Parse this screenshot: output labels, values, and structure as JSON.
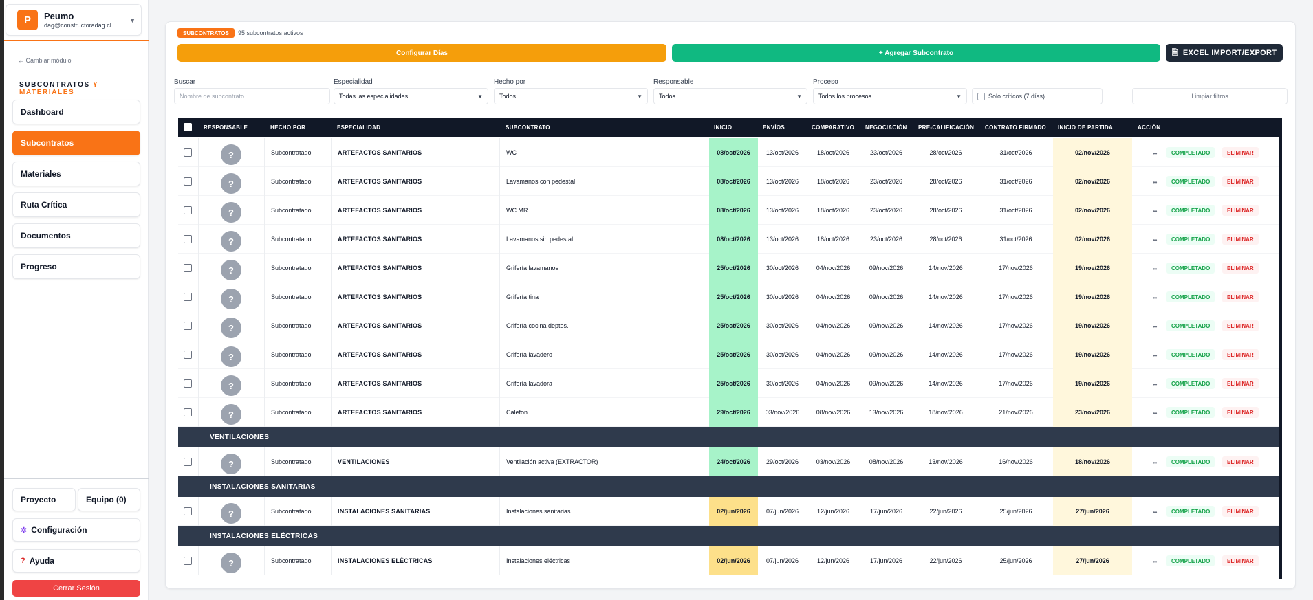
{
  "project": {
    "logo_letter": "P",
    "name": "Peumo",
    "email": "dag@constructoradag.cl"
  },
  "sidebar": {
    "change_module": "← Cambiar módulo",
    "module_title_a": "SUBCONTRATOS",
    "module_title_b": "Y MATERIALES",
    "nav": [
      "Dashboard",
      "Subcontratos",
      "Materiales",
      "Ruta Crítica",
      "Documentos",
      "Progreso"
    ],
    "active_nav": "Subcontratos",
    "project_btn": "Proyecto",
    "team_btn": "Equipo (0)",
    "config_btn": "Configuración",
    "help_btn": "Ayuda",
    "logout_btn": "Cerrar Sesión"
  },
  "header": {
    "badge": "SUBCONTRATOS",
    "active_count": "95 subcontratos activos",
    "configure_days": "Configurar Días",
    "add_subcontract": "+ Agregar Subcontrato",
    "excel": "EXCEL IMPORT/EXPORT"
  },
  "filters": {
    "search_label": "Buscar",
    "search_placeholder": "Nombre de subcontrato...",
    "specialty_label": "Especialidad",
    "specialty_value": "Todas las especialidades",
    "doneby_label": "Hecho por",
    "doneby_value": "Todos",
    "responsible_label": "Responsable",
    "responsible_value": "Todos",
    "process_label": "Proceso",
    "process_value": "Todos los procesos",
    "critical_only": "Solo críticos (7 días)",
    "clear": "Limpiar filtros"
  },
  "table": {
    "headers": [
      "RESPONSABLE",
      "HECHO POR",
      "ESPECIALIDAD",
      "SUBCONTRATO",
      "INICIO",
      "ENVÍOS",
      "COMPARATIVO",
      "NEGOCIACIÓN",
      "PRE-CALIFICACIÓN",
      "CONTRATO FIRMADO",
      "INICIO DE PARTIDA",
      "ACCIÓN"
    ],
    "avatar_glyph": "?",
    "status_label": "COMPLETADO",
    "delete_label": "ELIMINAR",
    "rows": [
      {
        "type": "row",
        "hecho": "Subcontratado",
        "esp": "ARTEFACTOS SANITARIOS",
        "sub": "WC",
        "inicio": "08/oct/2026",
        "inicio_color": "green",
        "envios": "13/oct/2026",
        "comp": "18/oct/2026",
        "neg": "23/oct/2026",
        "pre": "28/oct/2026",
        "firm": "31/oct/2026",
        "part": "02/nov/2026"
      },
      {
        "type": "row",
        "hecho": "Subcontratado",
        "esp": "ARTEFACTOS SANITARIOS",
        "sub": "Lavamanos con pedestal",
        "inicio": "08/oct/2026",
        "inicio_color": "green",
        "envios": "13/oct/2026",
        "comp": "18/oct/2026",
        "neg": "23/oct/2026",
        "pre": "28/oct/2026",
        "firm": "31/oct/2026",
        "part": "02/nov/2026"
      },
      {
        "type": "row",
        "hecho": "Subcontratado",
        "esp": "ARTEFACTOS SANITARIOS",
        "sub": "WC MR",
        "inicio": "08/oct/2026",
        "inicio_color": "green",
        "envios": "13/oct/2026",
        "comp": "18/oct/2026",
        "neg": "23/oct/2026",
        "pre": "28/oct/2026",
        "firm": "31/oct/2026",
        "part": "02/nov/2026"
      },
      {
        "type": "row",
        "hecho": "Subcontratado",
        "esp": "ARTEFACTOS SANITARIOS",
        "sub": "Lavamanos sin pedestal",
        "inicio": "08/oct/2026",
        "inicio_color": "green",
        "envios": "13/oct/2026",
        "comp": "18/oct/2026",
        "neg": "23/oct/2026",
        "pre": "28/oct/2026",
        "firm": "31/oct/2026",
        "part": "02/nov/2026"
      },
      {
        "type": "row",
        "hecho": "Subcontratado",
        "esp": "ARTEFACTOS SANITARIOS",
        "sub": "Grifería lavamanos",
        "inicio": "25/oct/2026",
        "inicio_color": "green",
        "envios": "30/oct/2026",
        "comp": "04/nov/2026",
        "neg": "09/nov/2026",
        "pre": "14/nov/2026",
        "firm": "17/nov/2026",
        "part": "19/nov/2026"
      },
      {
        "type": "row",
        "hecho": "Subcontratado",
        "esp": "ARTEFACTOS SANITARIOS",
        "sub": "Grifería tina",
        "inicio": "25/oct/2026",
        "inicio_color": "green",
        "envios": "30/oct/2026",
        "comp": "04/nov/2026",
        "neg": "09/nov/2026",
        "pre": "14/nov/2026",
        "firm": "17/nov/2026",
        "part": "19/nov/2026"
      },
      {
        "type": "row",
        "hecho": "Subcontratado",
        "esp": "ARTEFACTOS SANITARIOS",
        "sub": "Grifería cocina deptos.",
        "inicio": "25/oct/2026",
        "inicio_color": "green",
        "envios": "30/oct/2026",
        "comp": "04/nov/2026",
        "neg": "09/nov/2026",
        "pre": "14/nov/2026",
        "firm": "17/nov/2026",
        "part": "19/nov/2026"
      },
      {
        "type": "row",
        "hecho": "Subcontratado",
        "esp": "ARTEFACTOS SANITARIOS",
        "sub": "Grifería lavadero",
        "inicio": "25/oct/2026",
        "inicio_color": "green",
        "envios": "30/oct/2026",
        "comp": "04/nov/2026",
        "neg": "09/nov/2026",
        "pre": "14/nov/2026",
        "firm": "17/nov/2026",
        "part": "19/nov/2026"
      },
      {
        "type": "row",
        "hecho": "Subcontratado",
        "esp": "ARTEFACTOS SANITARIOS",
        "sub": "Grifería lavadora",
        "inicio": "25/oct/2026",
        "inicio_color": "green",
        "envios": "30/oct/2026",
        "comp": "04/nov/2026",
        "neg": "09/nov/2026",
        "pre": "14/nov/2026",
        "firm": "17/nov/2026",
        "part": "19/nov/2026"
      },
      {
        "type": "row",
        "hecho": "Subcontratado",
        "esp": "ARTEFACTOS SANITARIOS",
        "sub": "Calefon",
        "inicio": "29/oct/2026",
        "inicio_color": "green",
        "envios": "03/nov/2026",
        "comp": "08/nov/2026",
        "neg": "13/nov/2026",
        "pre": "18/nov/2026",
        "firm": "21/nov/2026",
        "part": "23/nov/2026"
      },
      {
        "type": "group",
        "label": "VENTILACIONES"
      },
      {
        "type": "row",
        "hecho": "Subcontratado",
        "esp": "VENTILACIONES",
        "sub": "Ventilación activa (EXTRACTOR)",
        "inicio": "24/oct/2026",
        "inicio_color": "green",
        "envios": "29/oct/2026",
        "comp": "03/nov/2026",
        "neg": "08/nov/2026",
        "pre": "13/nov/2026",
        "firm": "16/nov/2026",
        "part": "18/nov/2026"
      },
      {
        "type": "group",
        "label": "INSTALACIONES SANITARIAS"
      },
      {
        "type": "row",
        "hecho": "Subcontratado",
        "esp": "INSTALACIONES SANITARIAS",
        "sub": "Instalaciones sanitarias",
        "inicio": "02/jun/2026",
        "inicio_color": "yellow",
        "envios": "07/jun/2026",
        "comp": "12/jun/2026",
        "neg": "17/jun/2026",
        "pre": "22/jun/2026",
        "firm": "25/jun/2026",
        "part": "27/jun/2026"
      },
      {
        "type": "group",
        "label": "INSTALACIONES ELÉCTRICAS"
      },
      {
        "type": "row",
        "hecho": "Subcontratado",
        "esp": "INSTALACIONES ELÉCTRICAS",
        "sub": "Instalaciones eléctricas",
        "inicio": "02/jun/2026",
        "inicio_color": "yellow",
        "envios": "07/jun/2026",
        "comp": "12/jun/2026",
        "neg": "17/jun/2026",
        "pre": "22/jun/2026",
        "firm": "25/jun/2026",
        "part": "27/jun/2026"
      }
    ]
  },
  "colors": {
    "accent": "#f97316",
    "success": "#10b981",
    "warning": "#f59e0b",
    "danger": "#ef4444",
    "dark": "#111827"
  }
}
